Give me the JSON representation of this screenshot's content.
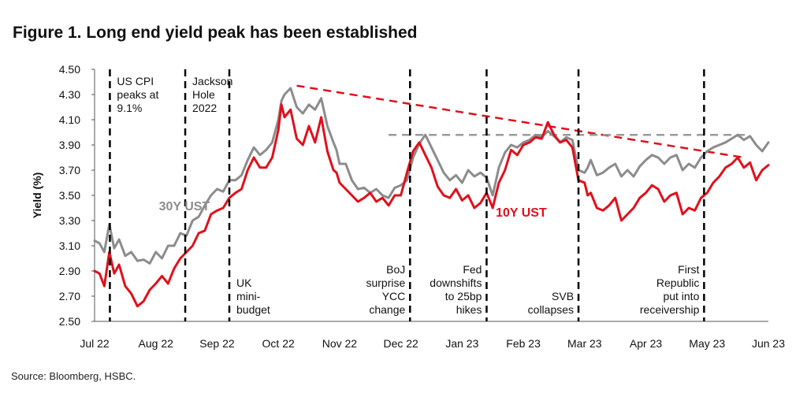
{
  "title": "Figure 1. Long end yield peak has been established",
  "source": "Source: Bloomberg, HSBC.",
  "chart_data": {
    "type": "line",
    "ylabel": "Yield (%)",
    "xlabel": "",
    "ylim": [
      2.5,
      4.5
    ],
    "yticks": [
      "4.50",
      "4.30",
      "4.10",
      "3.90",
      "3.70",
      "3.50",
      "3.30",
      "3.10",
      "2.90",
      "2.70",
      "2.50"
    ],
    "month_labels": [
      "Jul 22",
      "Aug 22",
      "Sep 22",
      "Oct 22",
      "Nov 22",
      "Dec 22",
      "Jan 23",
      "Feb 23",
      "Mar 23",
      "Apr 23",
      "May 23",
      "Jun 23"
    ],
    "x_domain": [
      0,
      11
    ],
    "colors": {
      "ust30": "#8c8c8c",
      "ust10": "#e0101b"
    },
    "series": [
      {
        "name": "30Y UST",
        "color": "#8c8c8c",
        "x": [
          0,
          0.08,
          0.16,
          0.24,
          0.32,
          0.4,
          0.5,
          0.6,
          0.7,
          0.8,
          0.9,
          1.0,
          1.1,
          1.2,
          1.3,
          1.4,
          1.5,
          1.6,
          1.7,
          1.8,
          1.9,
          2.0,
          2.1,
          2.2,
          2.3,
          2.4,
          2.5,
          2.6,
          2.7,
          2.8,
          2.9,
          3.0,
          3.05,
          3.1,
          3.2,
          3.3,
          3.4,
          3.5,
          3.6,
          3.7,
          3.8,
          3.9,
          3.95,
          4.0,
          4.1,
          4.2,
          4.3,
          4.4,
          4.5,
          4.6,
          4.7,
          4.8,
          4.9,
          5.0,
          5.1,
          5.2,
          5.3,
          5.4,
          5.5,
          5.6,
          5.7,
          5.8,
          5.9,
          6.0,
          6.1,
          6.2,
          6.3,
          6.4,
          6.5,
          6.6,
          6.7,
          6.8,
          6.9,
          7.0,
          7.1,
          7.2,
          7.3,
          7.4,
          7.5,
          7.6,
          7.7,
          7.8,
          7.9,
          8.0,
          8.05,
          8.1,
          8.2,
          8.3,
          8.4,
          8.5,
          8.6,
          8.7,
          8.8,
          8.9,
          9.0,
          9.1,
          9.2,
          9.3,
          9.4,
          9.5,
          9.6,
          9.7,
          9.8,
          9.9,
          10.0,
          10.1,
          10.2,
          10.3,
          10.4,
          10.5,
          10.6,
          10.7,
          10.8,
          10.9,
          11.0
        ],
        "values": [
          3.14,
          3.12,
          3.05,
          3.27,
          3.08,
          3.15,
          3.02,
          3.05,
          2.98,
          2.99,
          2.96,
          3.05,
          3.0,
          3.1,
          3.1,
          3.2,
          3.18,
          3.3,
          3.33,
          3.42,
          3.5,
          3.55,
          3.53,
          3.62,
          3.62,
          3.66,
          3.78,
          3.88,
          3.82,
          3.86,
          3.92,
          4.1,
          4.25,
          4.3,
          4.35,
          4.2,
          4.15,
          4.22,
          4.18,
          4.27,
          4.05,
          3.92,
          3.86,
          3.75,
          3.75,
          3.62,
          3.55,
          3.56,
          3.52,
          3.55,
          3.5,
          3.48,
          3.56,
          3.58,
          3.62,
          3.8,
          3.91,
          3.98,
          3.88,
          3.78,
          3.68,
          3.62,
          3.66,
          3.6,
          3.7,
          3.65,
          3.68,
          3.64,
          3.5,
          3.72,
          3.84,
          3.9,
          3.88,
          3.92,
          3.94,
          3.98,
          3.96,
          4.01,
          3.97,
          3.92,
          3.96,
          3.94,
          3.7,
          3.68,
          3.72,
          3.78,
          3.66,
          3.68,
          3.72,
          3.75,
          3.65,
          3.7,
          3.65,
          3.73,
          3.78,
          3.82,
          3.8,
          3.75,
          3.8,
          3.82,
          3.7,
          3.75,
          3.72,
          3.8,
          3.85,
          3.88,
          3.9,
          3.92,
          3.95,
          3.98,
          3.94,
          3.97,
          3.9,
          3.85,
          3.92
        ]
      },
      {
        "name": "10Y UST",
        "color": "#e0101b",
        "x": [
          0,
          0.08,
          0.16,
          0.24,
          0.32,
          0.4,
          0.5,
          0.6,
          0.7,
          0.8,
          0.9,
          1.0,
          1.1,
          1.2,
          1.3,
          1.4,
          1.5,
          1.6,
          1.7,
          1.8,
          1.9,
          2.0,
          2.1,
          2.2,
          2.3,
          2.4,
          2.5,
          2.6,
          2.7,
          2.8,
          2.9,
          3.0,
          3.05,
          3.1,
          3.2,
          3.3,
          3.4,
          3.5,
          3.6,
          3.7,
          3.8,
          3.9,
          3.95,
          4.0,
          4.1,
          4.2,
          4.3,
          4.4,
          4.5,
          4.6,
          4.7,
          4.8,
          4.9,
          5.0,
          5.1,
          5.2,
          5.3,
          5.4,
          5.5,
          5.6,
          5.7,
          5.8,
          5.9,
          6.0,
          6.1,
          6.2,
          6.3,
          6.4,
          6.5,
          6.6,
          6.7,
          6.8,
          6.9,
          7.0,
          7.1,
          7.2,
          7.3,
          7.4,
          7.5,
          7.6,
          7.7,
          7.8,
          7.9,
          8.0,
          8.05,
          8.1,
          8.2,
          8.3,
          8.4,
          8.5,
          8.6,
          8.7,
          8.8,
          8.9,
          9.0,
          9.1,
          9.2,
          9.3,
          9.4,
          9.5,
          9.6,
          9.7,
          9.8,
          9.9,
          10.0,
          10.1,
          10.2,
          10.3,
          10.4,
          10.5,
          10.6,
          10.7,
          10.8,
          10.9,
          11.0
        ],
        "values": [
          2.9,
          2.88,
          2.78,
          3.05,
          2.88,
          2.95,
          2.78,
          2.72,
          2.62,
          2.66,
          2.75,
          2.8,
          2.86,
          2.8,
          2.92,
          3.0,
          3.05,
          3.1,
          3.2,
          3.22,
          3.35,
          3.38,
          3.4,
          3.48,
          3.52,
          3.55,
          3.7,
          3.8,
          3.72,
          3.72,
          3.8,
          4.02,
          4.22,
          4.12,
          4.18,
          3.95,
          3.9,
          4.05,
          3.92,
          4.12,
          3.85,
          3.7,
          3.68,
          3.6,
          3.55,
          3.5,
          3.45,
          3.48,
          3.52,
          3.45,
          3.48,
          3.42,
          3.5,
          3.5,
          3.68,
          3.85,
          3.92,
          3.82,
          3.72,
          3.57,
          3.5,
          3.48,
          3.55,
          3.46,
          3.5,
          3.4,
          3.44,
          3.52,
          3.4,
          3.6,
          3.7,
          3.86,
          3.82,
          3.9,
          3.92,
          3.96,
          3.95,
          4.08,
          3.98,
          3.92,
          3.94,
          3.88,
          3.62,
          3.6,
          3.5,
          3.52,
          3.4,
          3.38,
          3.42,
          3.48,
          3.3,
          3.35,
          3.4,
          3.48,
          3.52,
          3.58,
          3.55,
          3.45,
          3.5,
          3.52,
          3.35,
          3.4,
          3.38,
          3.48,
          3.52,
          3.6,
          3.65,
          3.72,
          3.75,
          3.8,
          3.72,
          3.76,
          3.62,
          3.7,
          3.74
        ]
      }
    ],
    "series_labels": [
      {
        "text": "30Y UST",
        "series": "30Y UST",
        "x": 1.05,
        "y": 3.38
      },
      {
        "text": "10Y UST",
        "series": "10Y UST",
        "x": 6.55,
        "y": 3.33
      }
    ],
    "trend_lines": [
      {
        "name": "downtrend-peaks",
        "color": "#e0101b",
        "from": [
          3.3,
          4.37
        ],
        "to": [
          10.6,
          3.8
        ]
      },
      {
        "name": "resistance-level",
        "color": "#9a9a9a",
        "from": [
          4.8,
          3.98
        ],
        "to": [
          10.7,
          3.98
        ]
      }
    ],
    "event_lines": [
      {
        "x": 0.25,
        "label": [
          "US CPI",
          "peaks at",
          "9.1%"
        ],
        "position": "top"
      },
      {
        "x": 1.48,
        "label": [
          "Jackson",
          "Hole",
          "2022"
        ],
        "position": "top"
      },
      {
        "x": 2.2,
        "label": [
          "UK",
          "mini-",
          "budget"
        ],
        "position": "bottom-right"
      },
      {
        "x": 5.15,
        "label": [
          "BoJ",
          "surprise",
          "YCC",
          "change"
        ],
        "position": "bottom-left"
      },
      {
        "x": 6.4,
        "label": [
          "Fed",
          "downshifts",
          "to 25bp",
          "hikes"
        ],
        "position": "bottom-left"
      },
      {
        "x": 7.9,
        "label": [
          "SVB",
          "collapses"
        ],
        "position": "bottom-left"
      },
      {
        "x": 9.95,
        "label": [
          "First",
          "Republic",
          "put into",
          "receivership"
        ],
        "position": "bottom-left"
      }
    ]
  }
}
